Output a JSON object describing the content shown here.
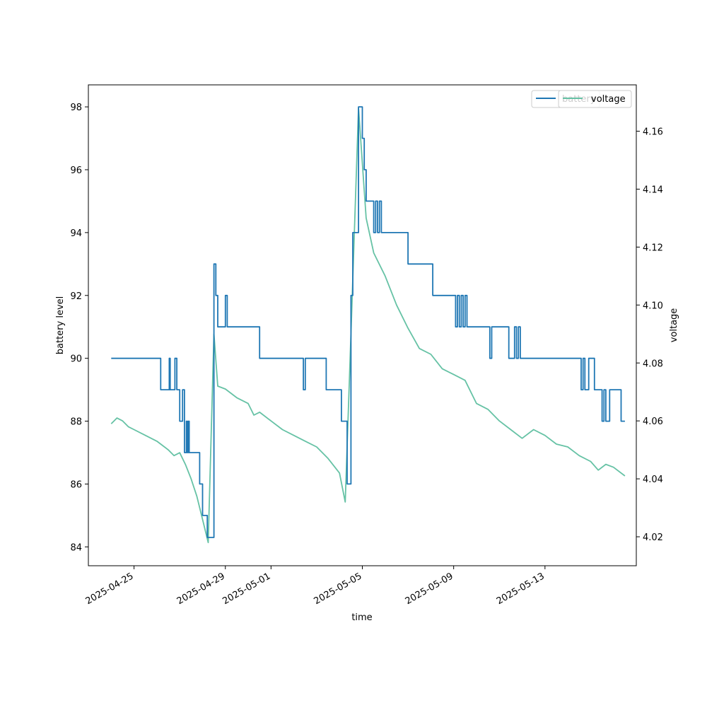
{
  "chart_data": {
    "type": "line",
    "xlabel": "time",
    "ylabel_left": "battery level",
    "ylabel_right": "voltage",
    "x_range": [
      "2025-04-23T00:00",
      "2025-05-17T00:00"
    ],
    "ylim_left": [
      83.4,
      98.7
    ],
    "ylim_right": [
      4.01,
      4.176
    ],
    "x_ticks": [
      "2025-04-25",
      "2025-04-29",
      "2025-05-01",
      "2025-05-05",
      "2025-05-09",
      "2025-05-13"
    ],
    "y_ticks_left": [
      84,
      86,
      88,
      90,
      92,
      94,
      96,
      98
    ],
    "y_ticks_right": [
      4.02,
      4.04,
      4.06,
      4.08,
      4.1,
      4.12,
      4.14,
      4.16
    ],
    "grid": false,
    "legends": [
      {
        "placement": "top-right",
        "entries": [
          "battery"
        ],
        "color": "#1f77b4"
      },
      {
        "placement": "top-right",
        "entries": [
          "voltage"
        ],
        "color": "#66c2a5"
      }
    ],
    "series": [
      {
        "name": "battery",
        "axis": "left",
        "color": "#1f77b4",
        "step": true,
        "points": [
          [
            "2025-04-24T00:00",
            90
          ],
          [
            "2025-04-25T12:00",
            90
          ],
          [
            "2025-04-26T00:00",
            90
          ],
          [
            "2025-04-26T04:00",
            89
          ],
          [
            "2025-04-26T12:00",
            89
          ],
          [
            "2025-04-26T13:00",
            90
          ],
          [
            "2025-04-26T14:00",
            89
          ],
          [
            "2025-04-26T18:00",
            89
          ],
          [
            "2025-04-26T19:00",
            90
          ],
          [
            "2025-04-26T21:00",
            89
          ],
          [
            "2025-04-27T00:00",
            88
          ],
          [
            "2025-04-27T03:00",
            89
          ],
          [
            "2025-04-27T05:00",
            87
          ],
          [
            "2025-04-27T07:00",
            88
          ],
          [
            "2025-04-27T08:00",
            87
          ],
          [
            "2025-04-27T09:00",
            88
          ],
          [
            "2025-04-27T10:00",
            87
          ],
          [
            "2025-04-27T18:00",
            87
          ],
          [
            "2025-04-27T21:00",
            86
          ],
          [
            "2025-04-28T00:00",
            85
          ],
          [
            "2025-04-28T04:00",
            85
          ],
          [
            "2025-04-28T05:00",
            84.3
          ],
          [
            "2025-04-28T12:00",
            93
          ],
          [
            "2025-04-28T14:00",
            92
          ],
          [
            "2025-04-28T16:00",
            91
          ],
          [
            "2025-04-28T23:00",
            91
          ],
          [
            "2025-04-29T00:00",
            92
          ],
          [
            "2025-04-29T02:00",
            91
          ],
          [
            "2025-04-30T08:00",
            91
          ],
          [
            "2025-04-30T12:00",
            90
          ],
          [
            "2025-05-02T08:00",
            90
          ],
          [
            "2025-05-02T10:00",
            89
          ],
          [
            "2025-05-02T12:00",
            90
          ],
          [
            "2025-05-03T08:00",
            90
          ],
          [
            "2025-05-03T10:00",
            89
          ],
          [
            "2025-05-04T00:00",
            89
          ],
          [
            "2025-05-04T02:00",
            88
          ],
          [
            "2025-05-04T08:00",
            86
          ],
          [
            "2025-05-04T12:00",
            92
          ],
          [
            "2025-05-04T14:00",
            94
          ],
          [
            "2025-05-04T20:00",
            98
          ],
          [
            "2025-05-05T00:00",
            97
          ],
          [
            "2025-05-05T02:00",
            96
          ],
          [
            "2025-05-05T04:00",
            95
          ],
          [
            "2025-05-05T10:00",
            95
          ],
          [
            "2025-05-05T12:00",
            94
          ],
          [
            "2025-05-05T14:00",
            95
          ],
          [
            "2025-05-05T16:00",
            94
          ],
          [
            "2025-05-05T18:00",
            95
          ],
          [
            "2025-05-05T20:00",
            94
          ],
          [
            "2025-05-06T20:00",
            94
          ],
          [
            "2025-05-07T00:00",
            93
          ],
          [
            "2025-05-07T23:00",
            93
          ],
          [
            "2025-05-08T02:00",
            92
          ],
          [
            "2025-05-08T22:00",
            92
          ],
          [
            "2025-05-09T02:00",
            91
          ],
          [
            "2025-05-09T04:00",
            92
          ],
          [
            "2025-05-09T06:00",
            91
          ],
          [
            "2025-05-09T08:00",
            92
          ],
          [
            "2025-05-09T10:00",
            91
          ],
          [
            "2025-05-09T12:00",
            92
          ],
          [
            "2025-05-09T14:00",
            91
          ],
          [
            "2025-05-10T12:00",
            91
          ],
          [
            "2025-05-10T14:00",
            90
          ],
          [
            "2025-05-10T16:00",
            91
          ],
          [
            "2025-05-11T08:00",
            91
          ],
          [
            "2025-05-11T10:00",
            90
          ],
          [
            "2025-05-11T14:00",
            90
          ],
          [
            "2025-05-11T16:00",
            91
          ],
          [
            "2025-05-11T18:00",
            90
          ],
          [
            "2025-05-11T20:00",
            91
          ],
          [
            "2025-05-11T22:00",
            90
          ],
          [
            "2025-05-13T00:00",
            90
          ],
          [
            "2025-05-14T12:00",
            90
          ],
          [
            "2025-05-14T14:00",
            89
          ],
          [
            "2025-05-14T16:00",
            90
          ],
          [
            "2025-05-14T18:00",
            89
          ],
          [
            "2025-05-14T22:00",
            90
          ],
          [
            "2025-05-15T02:00",
            90
          ],
          [
            "2025-05-15T04:00",
            89
          ],
          [
            "2025-05-15T08:00",
            89
          ],
          [
            "2025-05-15T12:00",
            88
          ],
          [
            "2025-05-15T14:00",
            89
          ],
          [
            "2025-05-15T16:00",
            88
          ],
          [
            "2025-05-15T20:00",
            89
          ],
          [
            "2025-05-16T06:00",
            89
          ],
          [
            "2025-05-16T08:00",
            88
          ],
          [
            "2025-05-16T12:00",
            88
          ]
        ]
      },
      {
        "name": "voltage",
        "axis": "right",
        "color": "#66c2a5",
        "step": false,
        "points": [
          [
            "2025-04-24T00:00",
            4.059
          ],
          [
            "2025-04-24T06:00",
            4.061
          ],
          [
            "2025-04-24T12:00",
            4.06
          ],
          [
            "2025-04-24T18:00",
            4.058
          ],
          [
            "2025-04-25T00:00",
            4.057
          ],
          [
            "2025-04-25T12:00",
            4.055
          ],
          [
            "2025-04-26T00:00",
            4.053
          ],
          [
            "2025-04-26T12:00",
            4.05
          ],
          [
            "2025-04-26T18:00",
            4.048
          ],
          [
            "2025-04-27T00:00",
            4.049
          ],
          [
            "2025-04-27T06:00",
            4.045
          ],
          [
            "2025-04-27T12:00",
            4.04
          ],
          [
            "2025-04-27T18:00",
            4.034
          ],
          [
            "2025-04-28T00:00",
            4.026
          ],
          [
            "2025-04-28T06:00",
            4.018
          ],
          [
            "2025-04-28T12:00",
            4.09
          ],
          [
            "2025-04-28T16:00",
            4.072
          ],
          [
            "2025-04-29T00:00",
            4.071
          ],
          [
            "2025-04-29T12:00",
            4.068
          ],
          [
            "2025-04-30T00:00",
            4.066
          ],
          [
            "2025-04-30T06:00",
            4.062
          ],
          [
            "2025-04-30T12:00",
            4.063
          ],
          [
            "2025-05-01T00:00",
            4.06
          ],
          [
            "2025-05-01T12:00",
            4.057
          ],
          [
            "2025-05-02T00:00",
            4.055
          ],
          [
            "2025-05-02T12:00",
            4.053
          ],
          [
            "2025-05-03T00:00",
            4.051
          ],
          [
            "2025-05-03T12:00",
            4.047
          ],
          [
            "2025-05-04T00:00",
            4.042
          ],
          [
            "2025-05-04T06:00",
            4.032
          ],
          [
            "2025-05-04T12:00",
            4.09
          ],
          [
            "2025-05-04T20:00",
            4.168
          ],
          [
            "2025-05-05T04:00",
            4.13
          ],
          [
            "2025-05-05T12:00",
            4.118
          ],
          [
            "2025-05-06T00:00",
            4.11
          ],
          [
            "2025-05-06T12:00",
            4.1
          ],
          [
            "2025-05-07T00:00",
            4.092
          ],
          [
            "2025-05-07T12:00",
            4.085
          ],
          [
            "2025-05-08T00:00",
            4.083
          ],
          [
            "2025-05-08T12:00",
            4.078
          ],
          [
            "2025-05-09T00:00",
            4.076
          ],
          [
            "2025-05-09T12:00",
            4.074
          ],
          [
            "2025-05-10T00:00",
            4.066
          ],
          [
            "2025-05-10T12:00",
            4.064
          ],
          [
            "2025-05-11T00:00",
            4.06
          ],
          [
            "2025-05-11T12:00",
            4.057
          ],
          [
            "2025-05-12T00:00",
            4.054
          ],
          [
            "2025-05-12T12:00",
            4.057
          ],
          [
            "2025-05-13T00:00",
            4.055
          ],
          [
            "2025-05-13T12:00",
            4.052
          ],
          [
            "2025-05-14T00:00",
            4.051
          ],
          [
            "2025-05-14T12:00",
            4.048
          ],
          [
            "2025-05-15T00:00",
            4.046
          ],
          [
            "2025-05-15T08:00",
            4.043
          ],
          [
            "2025-05-15T16:00",
            4.045
          ],
          [
            "2025-05-16T00:00",
            4.044
          ],
          [
            "2025-05-16T12:00",
            4.041
          ]
        ]
      }
    ]
  }
}
